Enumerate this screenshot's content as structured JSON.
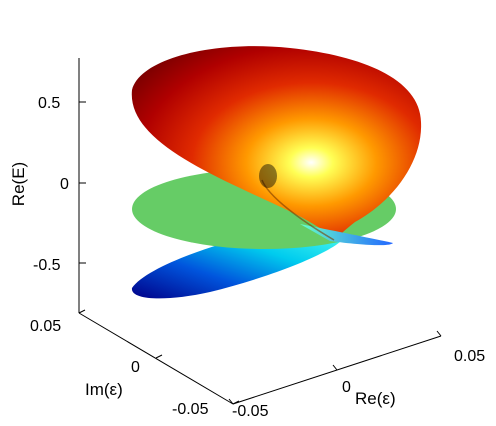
{
  "chart_data": {
    "type": "surface",
    "zlabel": "Re(E)",
    "ylabel": "Im(ε)",
    "xlabel": "Re(ε)",
    "xlim": [
      -0.05,
      0.05
    ],
    "ylim": [
      -0.05,
      0.05
    ],
    "zlim": [
      -0.75,
      0.75
    ],
    "z_ticks": [
      "0.5",
      "0",
      "-0.5"
    ],
    "y_ticks": [
      "0.05",
      "0",
      "-0.05"
    ],
    "x_ticks": [
      "-0.05",
      "0",
      "0.05"
    ],
    "colormap": "jet",
    "surfaces": [
      {
        "sheet": "upper",
        "z_range": [
          0,
          0.75
        ]
      },
      {
        "sheet": "middle",
        "z_value": 0,
        "color": "#66cc66"
      },
      {
        "sheet": "lower",
        "z_range": [
          -0.75,
          0
        ]
      }
    ],
    "grid": false,
    "legend": "none"
  }
}
